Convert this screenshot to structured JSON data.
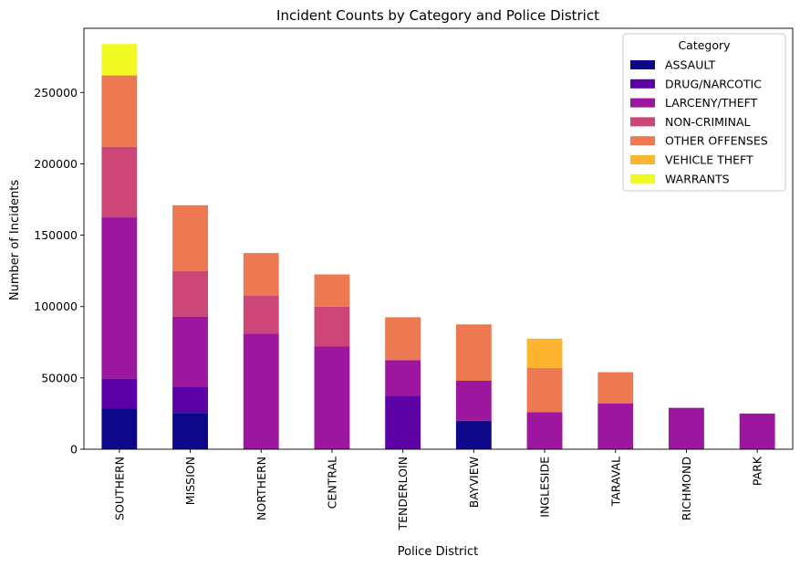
{
  "chart_data": {
    "type": "bar",
    "stacked": true,
    "title": "Incident Counts by Category and Police District",
    "xlabel": "Police District",
    "ylabel": "Number of Incidents",
    "ylim": [
      0,
      295000
    ],
    "yticks": [
      0,
      50000,
      100000,
      150000,
      200000,
      250000
    ],
    "categories": [
      "SOUTHERN",
      "MISSION",
      "NORTHERN",
      "CENTRAL",
      "TENDERLOIN",
      "BAYVIEW",
      "INGLESIDE",
      "TARAVAL",
      "RICHMOND",
      "PARK"
    ],
    "series": [
      {
        "name": "ASSAULT",
        "color": "#0d0887",
        "values": [
          28500,
          25500,
          0,
          0,
          0,
          20000,
          0,
          0,
          0,
          0
        ]
      },
      {
        "name": "DRUG/NARCOTIC",
        "color": "#5c01a6",
        "values": [
          21000,
          18500,
          0,
          0,
          37500,
          0,
          0,
          0,
          0,
          0
        ]
      },
      {
        "name": "LARCENY/THEFT",
        "color": "#9c179e",
        "values": [
          113000,
          49000,
          81000,
          72000,
          25000,
          28000,
          26000,
          32000,
          29000,
          25000
        ]
      },
      {
        "name": "NON-CRIMINAL",
        "color": "#cc4778",
        "values": [
          49500,
          32000,
          26500,
          28000,
          0,
          0,
          0,
          0,
          0,
          0
        ]
      },
      {
        "name": "OTHER OFFENSES",
        "color": "#ed7953",
        "values": [
          50000,
          46000,
          30000,
          22500,
          30000,
          39500,
          31000,
          22000,
          0,
          0
        ]
      },
      {
        "name": "VEHICLE THEFT",
        "color": "#fdb42f",
        "values": [
          0,
          0,
          0,
          0,
          0,
          0,
          20500,
          0,
          0,
          0
        ]
      },
      {
        "name": "WARRANTS",
        "color": "#f0f921",
        "values": [
          22000,
          0,
          0,
          0,
          0,
          0,
          0,
          0,
          0,
          0
        ]
      }
    ],
    "legend": {
      "title": "Category",
      "placement": "top-right"
    },
    "grid": false
  }
}
